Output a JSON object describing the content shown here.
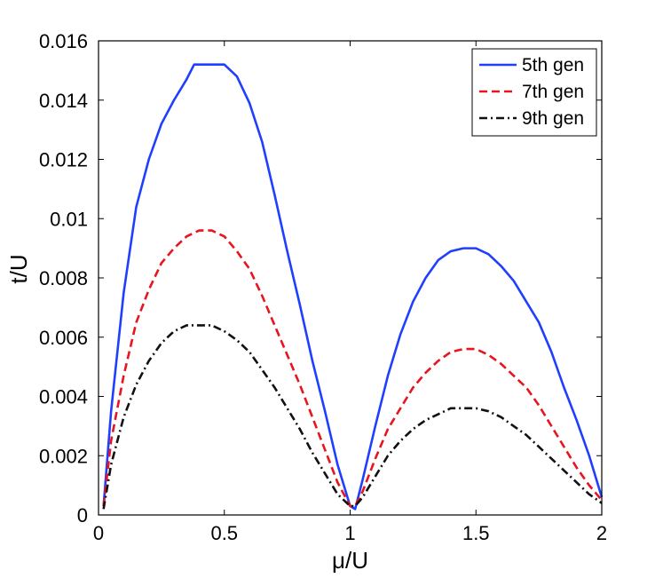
{
  "chart_data": {
    "type": "line",
    "title": "",
    "xlabel": "μ/U",
    "ylabel": "t/U",
    "xlim": [
      0,
      2
    ],
    "ylim": [
      0,
      0.016
    ],
    "xticks": [
      0,
      0.5,
      1,
      1.5,
      2
    ],
    "xtick_labels": [
      "0",
      "0.5",
      "1",
      "1.5",
      "2"
    ],
    "yticks": [
      0,
      0.002,
      0.004,
      0.006,
      0.008,
      0.01,
      0.012,
      0.014,
      0.016
    ],
    "ytick_labels": [
      "0",
      "0.002",
      "0.004",
      "0.006",
      "0.008",
      "0.01",
      "0.012",
      "0.014",
      "0.016"
    ],
    "grid": false,
    "legend_position": "top-right",
    "series": [
      {
        "name": "5th gen",
        "color": "#1f3fff",
        "style": "solid",
        "x": [
          0.02,
          0.05,
          0.1,
          0.15,
          0.2,
          0.25,
          0.3,
          0.35,
          0.38,
          0.4,
          0.45,
          0.5,
          0.55,
          0.6,
          0.65,
          0.7,
          0.75,
          0.8,
          0.85,
          0.9,
          0.95,
          1.0,
          1.02,
          1.05,
          1.1,
          1.15,
          1.2,
          1.25,
          1.3,
          1.35,
          1.4,
          1.45,
          1.5,
          1.55,
          1.6,
          1.65,
          1.7,
          1.75,
          1.8,
          1.85,
          1.9,
          1.95,
          2.0
        ],
        "y": [
          0.0003,
          0.0035,
          0.0075,
          0.0104,
          0.012,
          0.0132,
          0.014,
          0.0147,
          0.0152,
          0.0152,
          0.0152,
          0.0152,
          0.0148,
          0.0139,
          0.0126,
          0.0108,
          0.0089,
          0.0071,
          0.0052,
          0.0035,
          0.0017,
          0.0003,
          0.0002,
          0.0012,
          0.003,
          0.0047,
          0.0061,
          0.0072,
          0.008,
          0.0086,
          0.0089,
          0.009,
          0.009,
          0.0088,
          0.0084,
          0.0079,
          0.0072,
          0.0065,
          0.0055,
          0.0043,
          0.0032,
          0.002,
          0.0006
        ]
      },
      {
        "name": "7th gen",
        "color": "#e8141e",
        "style": "dashed",
        "x": [
          0.02,
          0.05,
          0.1,
          0.15,
          0.2,
          0.25,
          0.3,
          0.35,
          0.4,
          0.45,
          0.5,
          0.55,
          0.6,
          0.65,
          0.7,
          0.75,
          0.8,
          0.85,
          0.9,
          0.95,
          1.0,
          1.02,
          1.05,
          1.1,
          1.15,
          1.2,
          1.25,
          1.3,
          1.35,
          1.4,
          1.45,
          1.5,
          1.55,
          1.6,
          1.65,
          1.7,
          1.75,
          1.8,
          1.85,
          1.9,
          1.95,
          2.0
        ],
        "y": [
          0.0003,
          0.0025,
          0.0047,
          0.0065,
          0.0076,
          0.0085,
          0.009,
          0.0094,
          0.0096,
          0.0096,
          0.0094,
          0.0089,
          0.0083,
          0.0074,
          0.0064,
          0.0054,
          0.0044,
          0.0033,
          0.0022,
          0.0011,
          0.0003,
          0.0003,
          0.0008,
          0.0019,
          0.0029,
          0.0036,
          0.0043,
          0.0048,
          0.0052,
          0.0055,
          0.0056,
          0.0056,
          0.0054,
          0.0051,
          0.0047,
          0.0043,
          0.0037,
          0.003,
          0.0023,
          0.0016,
          0.001,
          0.0005
        ]
      },
      {
        "name": "9th gen",
        "color": "#111111",
        "style": "dashdot",
        "x": [
          0.02,
          0.05,
          0.1,
          0.15,
          0.2,
          0.25,
          0.3,
          0.35,
          0.4,
          0.45,
          0.5,
          0.55,
          0.6,
          0.65,
          0.7,
          0.75,
          0.8,
          0.85,
          0.9,
          0.95,
          1.0,
          1.02,
          1.05,
          1.1,
          1.15,
          1.2,
          1.25,
          1.3,
          1.35,
          1.4,
          1.45,
          1.5,
          1.55,
          1.6,
          1.65,
          1.7,
          1.75,
          1.8,
          1.85,
          1.9,
          1.95,
          2.0
        ],
        "y": [
          0.0002,
          0.0017,
          0.0033,
          0.0044,
          0.0052,
          0.0058,
          0.0062,
          0.0064,
          0.0064,
          0.0064,
          0.0062,
          0.0059,
          0.0055,
          0.0049,
          0.0043,
          0.0036,
          0.0029,
          0.0021,
          0.0014,
          0.0007,
          0.0003,
          0.0003,
          0.0006,
          0.0013,
          0.002,
          0.0025,
          0.0029,
          0.0032,
          0.0034,
          0.0036,
          0.0036,
          0.0036,
          0.0035,
          0.0033,
          0.003,
          0.0027,
          0.0023,
          0.0019,
          0.0015,
          0.0011,
          0.0007,
          0.0004
        ]
      }
    ]
  }
}
